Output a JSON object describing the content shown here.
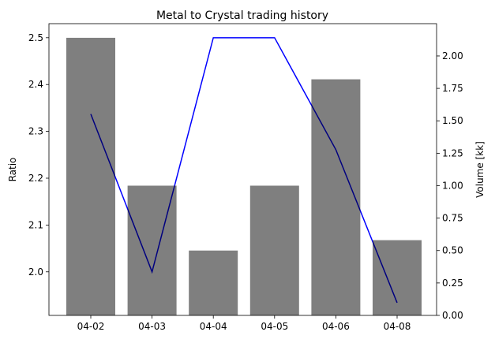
{
  "chart_data": {
    "type": "combo",
    "title": "Metal to Crystal trading history",
    "categories": [
      "04-02",
      "04-03",
      "04-04",
      "04-05",
      "04-06",
      "04-08"
    ],
    "ylabel": "Ratio",
    "y2label": "Volume [kk]",
    "ylim": [
      1.907,
      2.53
    ],
    "yticks": [
      {
        "value": 2,
        "label": "2.0"
      },
      2.1,
      2.2,
      2.3,
      2.4,
      2.5
    ],
    "y2lim": [
      0,
      2.249
    ],
    "y2ticks": [
      {
        "value": 0,
        "label": "0.00"
      },
      {
        "value": 0.25,
        "label": "0.25"
      },
      {
        "value": 0.5,
        "label": "0.50"
      },
      {
        "value": 0.75,
        "label": "0.75"
      },
      {
        "value": 1,
        "label": "1.00"
      },
      {
        "value": 1.25,
        "label": "1.25"
      },
      {
        "value": 1.5,
        "label": "1.50"
      },
      {
        "value": 1.75,
        "label": "1.75"
      },
      {
        "value": 2,
        "label": "2.00"
      }
    ],
    "grid": false,
    "series": [
      {
        "type": "line",
        "color": "#0000ff",
        "values": [
          2.337,
          2.0,
          2.5,
          2.5,
          2.261,
          1.934
        ]
      },
      {
        "type": "bar",
        "axis": "y2",
        "color": "#000000",
        "alpha": 0.5,
        "values": [
          2.14,
          1.0,
          0.5,
          1.0,
          1.82,
          0.58
        ]
      }
    ]
  }
}
